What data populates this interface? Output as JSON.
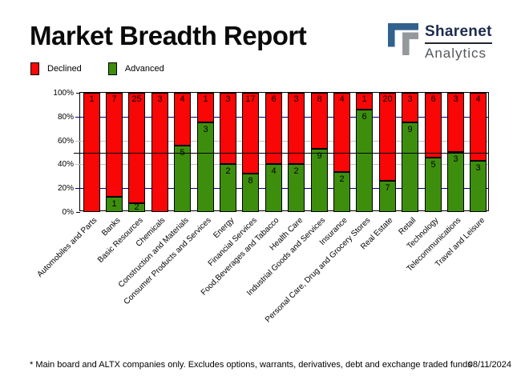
{
  "header": {
    "title": "Market Breadth Report",
    "logo": {
      "name": "Sharenet",
      "sub": "Analytics",
      "blue": "#31618e",
      "gray": "#96999b"
    }
  },
  "legend": [
    {
      "label": "Declined",
      "color": "#f90606"
    },
    {
      "label": "Advanced",
      "color": "#3e8e0e"
    }
  ],
  "chart_data": {
    "type": "bar",
    "stacked": true,
    "normalized": "percent",
    "title": "Market Breadth Report",
    "categories": [
      "Automobiles and Parts",
      "Banks",
      "Basic Resources",
      "Chemicals",
      "Construction and Materials",
      "Consumer Products and Services",
      "Energy",
      "Financial Services",
      "Food,Beverages and Tabacco",
      "Health Care",
      "Industrial Goods and Services",
      "Insurance",
      "Personal Care, Drug and Grocery Stores",
      "Real Estate",
      "Retail",
      "Technology",
      "Telecommunications",
      "Travel and Leisure"
    ],
    "series": [
      {
        "name": "Declined",
        "color": "#f90606",
        "values": [
          1,
          7,
          25,
          3,
          4,
          1,
          3,
          17,
          6,
          3,
          8,
          4,
          1,
          20,
          3,
          6,
          3,
          4
        ]
      },
      {
        "name": "Advanced",
        "color": "#3e8e0e",
        "values": [
          0,
          1,
          2,
          0,
          5,
          3,
          2,
          8,
          4,
          2,
          9,
          2,
          6,
          7,
          9,
          5,
          3,
          3
        ]
      }
    ],
    "ylim": [
      0,
      100
    ],
    "yticks": [
      {
        "label": "100%",
        "pct": 100
      },
      {
        "label": "80%",
        "pct": 80
      },
      {
        "label": "60%",
        "pct": 60
      },
      {
        "label": "40%",
        "pct": 40
      },
      {
        "label": "20%",
        "pct": 20
      },
      {
        "label": "0%",
        "pct": 0
      }
    ],
    "gridlines": [
      {
        "pct": 20,
        "color": "#000080"
      },
      {
        "pct": 40,
        "color": "#c0c0c0"
      },
      {
        "pct": 60,
        "color": "#c0c0c0"
      },
      {
        "pct": 80,
        "color": "#000080"
      }
    ],
    "reference_line_pct": 50,
    "legend_position": "top-left",
    "grid": true
  },
  "footer": {
    "note": "* Main board and ALTX companies only. Excludes options, warrants, derivatives, debt and exchange traded funds",
    "date": "08/11/2024"
  }
}
